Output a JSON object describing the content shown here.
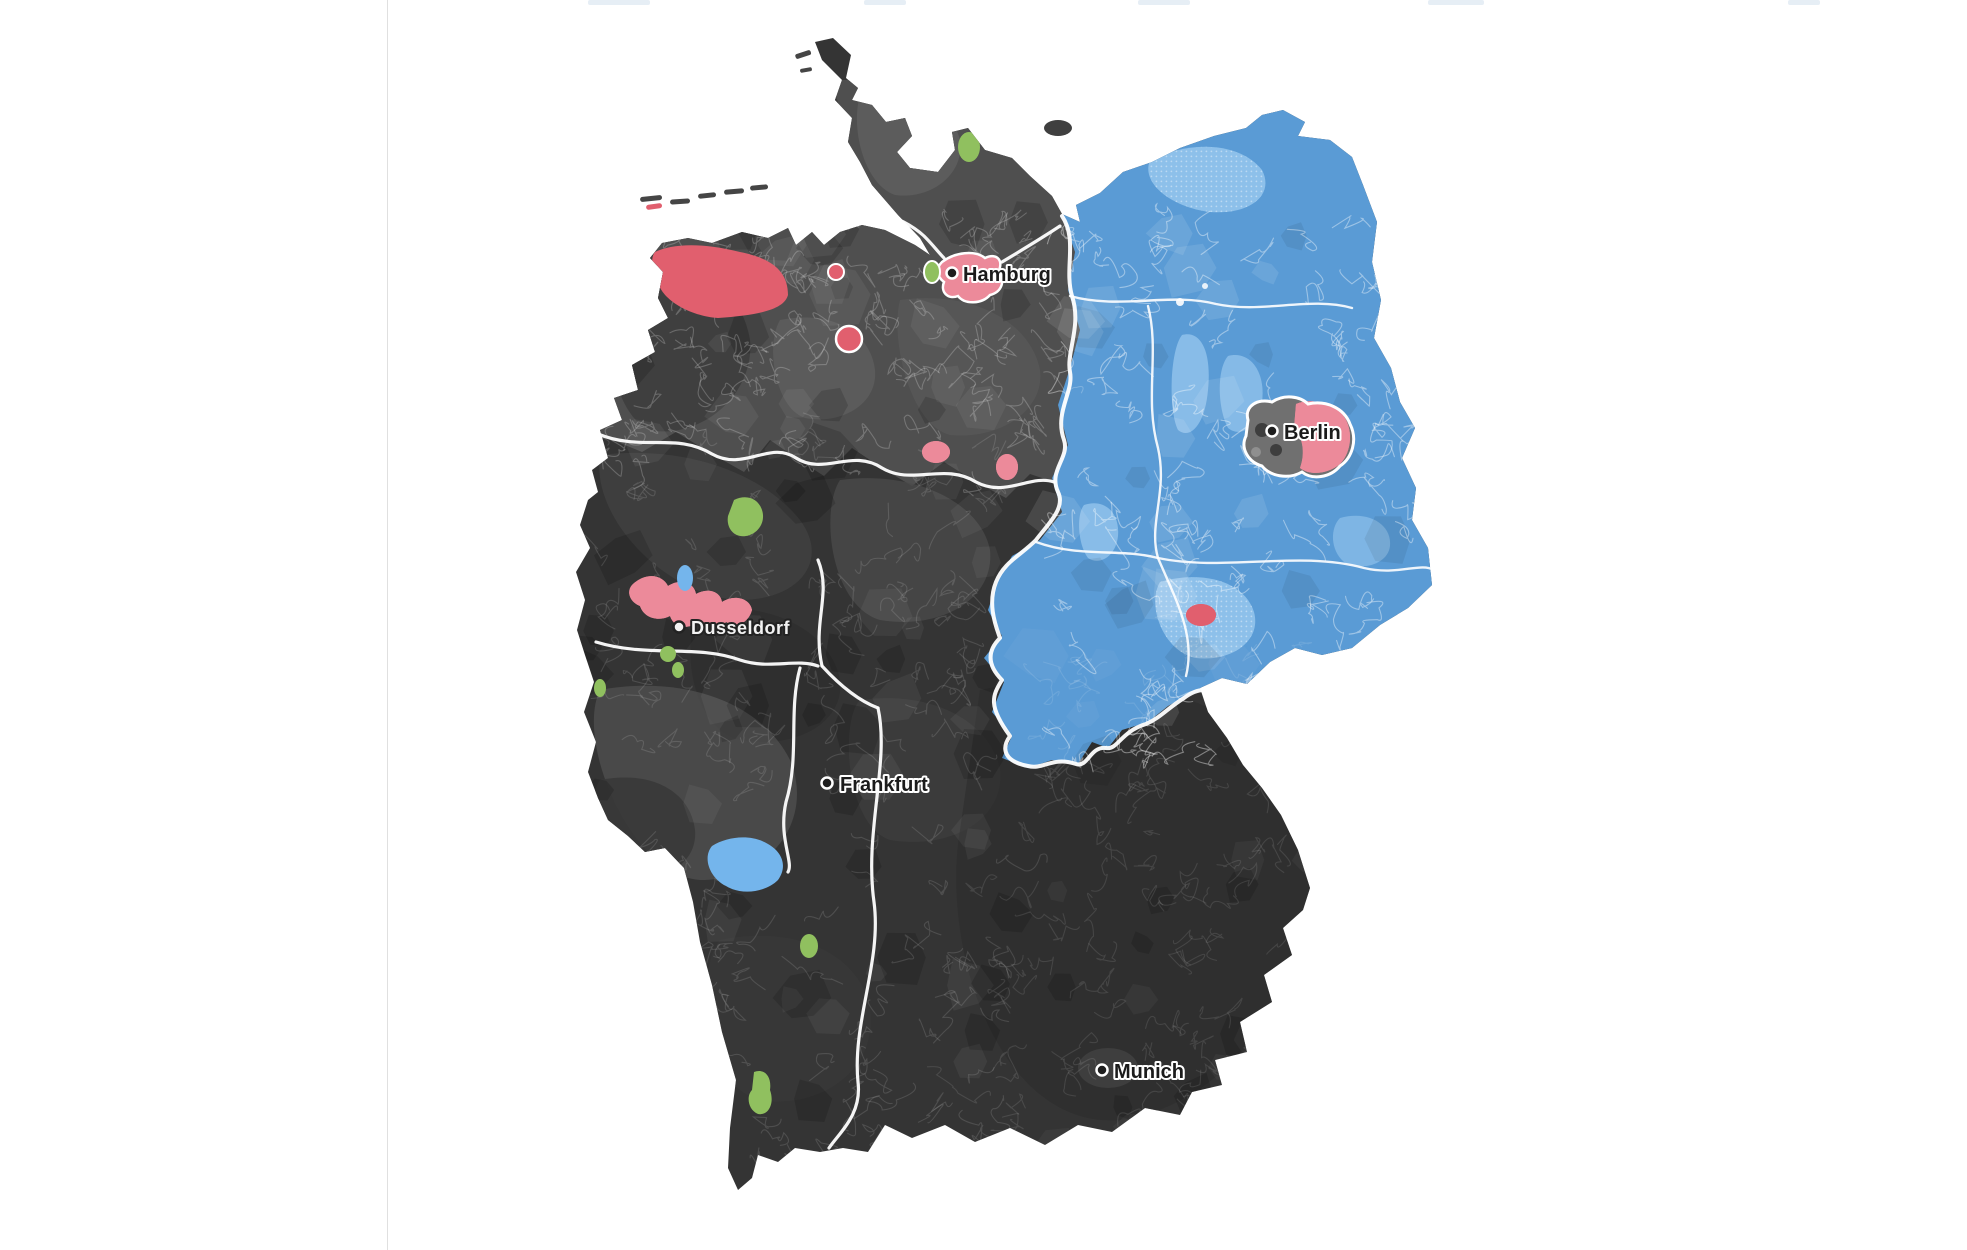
{
  "page": {
    "background": "#ffffff",
    "divider_color": "#e0e0e0"
  },
  "map": {
    "description": "Choropleth map of Germany colored by winning party per constituency",
    "colors": {
      "sea": "#ffffff",
      "union_dark": "#343434",
      "union_deep": "#2b2b2b",
      "gray_band": "#4f4f4f",
      "gray_mid": "#5d5d5d",
      "gray_light": "#6f6f6f",
      "afd_blue": "#5a9bd5",
      "afd_blue_light": "#8dc0ea",
      "afd_blue_west": "#74b5ec",
      "spd_red": "#e15f6e",
      "spd_pink": "#ec8a9a",
      "green": "#90c05f",
      "berlin_gray": "#707070",
      "border_white": "#ffffff",
      "label_dark": "#1b1b1b",
      "label_light": "#f2f2f2"
    },
    "cities": [
      {
        "name": "Hamburg",
        "style": "dark"
      },
      {
        "name": "Berlin",
        "style": "dark"
      },
      {
        "name": "Dusseldorf",
        "style": "light"
      },
      {
        "name": "Frankfurt",
        "style": "dark"
      },
      {
        "name": "Munich",
        "style": "dark"
      }
    ]
  }
}
